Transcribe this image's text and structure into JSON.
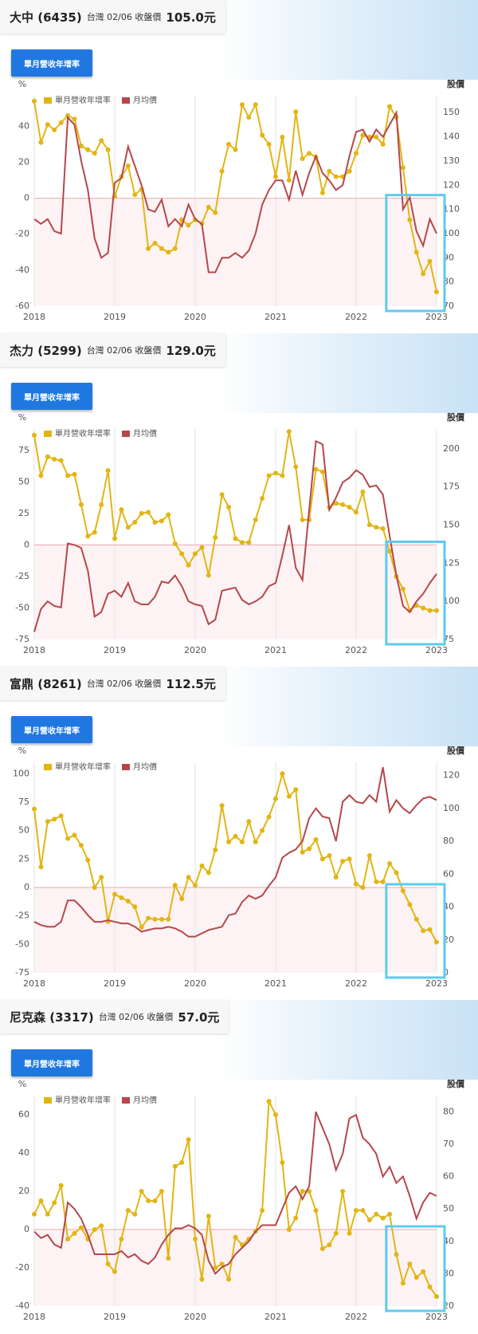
{
  "panels": [
    {
      "name": "大中 (6435)",
      "quote_label": "台灣 02/06 收盤價",
      "price": "105.0元",
      "button": "單月營收年增率"
    },
    {
      "name": "杰力 (5299)",
      "quote_label": "台灣 02/06 收盤價",
      "price": "129.0元",
      "button": "單月營收年增率"
    },
    {
      "name": "富鼎 (8261)",
      "quote_label": "台灣 02/06 收盤價",
      "price": "112.5元",
      "button": "單月營收年增率"
    },
    {
      "name": "尼克森 (3317)",
      "quote_label": "台灣 02/06 收盤價",
      "price": "57.0元",
      "button": "單月營收年增率"
    }
  ],
  "chart_data": [
    {
      "type": "line",
      "y_label": "%",
      "y2_label": "股價",
      "grid": true,
      "legend": "top-left",
      "categories": [
        "2018",
        null,
        null,
        null,
        null,
        null,
        null,
        null,
        null,
        null,
        null,
        null,
        "2019",
        null,
        null,
        null,
        null,
        null,
        null,
        null,
        null,
        null,
        null,
        null,
        "2020",
        null,
        null,
        null,
        null,
        null,
        null,
        null,
        null,
        null,
        null,
        null,
        "2021",
        null,
        null,
        null,
        null,
        null,
        null,
        null,
        null,
        null,
        null,
        null,
        "2022",
        null,
        null,
        null,
        null,
        null,
        null,
        null,
        null,
        null,
        null,
        null,
        "2023"
      ],
      "ylim": [
        -60,
        57
      ],
      "yticks": [
        -60,
        -40,
        -20,
        0,
        20,
        40
      ],
      "y2lim": [
        70,
        157
      ],
      "y2ticks": [
        70,
        80,
        90,
        100,
        110,
        120,
        130,
        140,
        150
      ],
      "series": [
        {
          "name": "單月營收年增率",
          "color": "#e2b514",
          "markers": true,
          "values": [
            54,
            31,
            41,
            38,
            42,
            46,
            44,
            29,
            27,
            25,
            32,
            27,
            1,
            12,
            18,
            2,
            5,
            -28,
            -25,
            -28,
            -30,
            -28,
            -12,
            -15,
            -12,
            -14,
            -5,
            -8,
            15,
            30,
            27,
            52,
            45,
            52,
            35,
            30,
            12,
            34,
            10,
            48,
            22,
            25,
            23,
            3,
            15,
            12,
            12,
            15,
            25,
            35,
            34,
            34,
            30,
            51,
            45,
            17,
            -12,
            -30,
            -42,
            -35,
            -52
          ]
        },
        {
          "name": "月均價",
          "color": "#b5474b",
          "axis": "y2",
          "values": [
            106,
            104,
            106,
            101,
            100,
            148,
            145,
            130,
            118,
            98,
            90,
            92,
            121,
            123,
            136,
            128,
            120,
            110,
            109,
            114,
            103,
            106,
            103,
            112,
            106,
            104,
            84,
            84,
            90,
            90,
            92,
            90,
            93,
            100,
            112,
            118,
            122,
            122,
            114,
            126,
            116,
            125,
            132,
            125,
            122,
            118,
            120,
            132,
            142,
            143,
            138,
            143,
            140,
            145,
            150,
            110,
            115,
            101,
            95,
            106,
            100
          ]
        }
      ]
    },
    {
      "type": "line",
      "y_label": "%",
      "y2_label": "股價",
      "grid": true,
      "legend": "top-left",
      "categories": [
        "2018",
        null,
        null,
        null,
        null,
        null,
        null,
        null,
        null,
        null,
        null,
        null,
        "2019",
        null,
        null,
        null,
        null,
        null,
        null,
        null,
        null,
        null,
        null,
        null,
        "2020",
        null,
        null,
        null,
        null,
        null,
        null,
        null,
        null,
        null,
        null,
        null,
        "2021",
        null,
        null,
        null,
        null,
        null,
        null,
        null,
        null,
        null,
        null,
        null,
        "2022",
        null,
        null,
        null,
        null,
        null,
        null,
        null,
        null,
        null,
        null,
        null,
        "2023"
      ],
      "ylim": [
        -75,
        92
      ],
      "yticks": [
        -75,
        -50,
        -25,
        0,
        25,
        50,
        75
      ],
      "y2lim": [
        75,
        213
      ],
      "y2ticks": [
        75,
        100,
        125,
        150,
        175,
        200
      ],
      "series": [
        {
          "name": "單月營收年增率",
          "color": "#e2b514",
          "markers": true,
          "values": [
            87,
            55,
            70,
            68,
            67,
            55,
            56,
            32,
            7,
            10,
            32,
            59,
            5,
            28,
            14,
            18,
            25,
            26,
            18,
            19,
            24,
            1,
            -7,
            -16,
            -7,
            -2,
            -24,
            6,
            40,
            30,
            5,
            2,
            2,
            20,
            37,
            55,
            57,
            55,
            90,
            62,
            20,
            20,
            60,
            58,
            30,
            33,
            32,
            30,
            26,
            42,
            16,
            14,
            13,
            -5,
            -25,
            -35,
            -52,
            -48,
            -50,
            -52,
            -52
          ]
        },
        {
          "name": "月均價",
          "color": "#b5474b",
          "axis": "y2",
          "values": [
            80,
            95,
            100,
            97,
            96,
            138,
            137,
            135,
            120,
            90,
            93,
            105,
            107,
            103,
            112,
            100,
            98,
            98,
            103,
            113,
            112,
            117,
            110,
            100,
            98,
            97,
            85,
            88,
            107,
            108,
            109,
            101,
            98,
            100,
            103,
            110,
            112,
            130,
            150,
            122,
            114,
            160,
            205,
            203,
            160,
            168,
            178,
            181,
            186,
            183,
            175,
            176,
            170,
            143,
            117,
            97,
            93,
            100,
            105,
            112,
            118
          ]
        }
      ]
    },
    {
      "type": "line",
      "y_label": "%",
      "y2_label": "股價",
      "grid": true,
      "legend": "top-left",
      "categories": [
        "2018",
        null,
        null,
        null,
        null,
        null,
        null,
        null,
        null,
        null,
        null,
        null,
        "2019",
        null,
        null,
        null,
        null,
        null,
        null,
        null,
        null,
        null,
        null,
        null,
        "2020",
        null,
        null,
        null,
        null,
        null,
        null,
        null,
        null,
        null,
        null,
        null,
        "2021",
        null,
        null,
        null,
        null,
        null,
        null,
        null,
        null,
        null,
        null,
        null,
        "2022",
        null,
        null,
        null,
        null,
        null,
        null,
        null,
        null,
        null,
        null,
        null,
        "2023"
      ],
      "ylim": [
        -75,
        110
      ],
      "yticks": [
        -75,
        -50,
        -25,
        0,
        25,
        50,
        75,
        100
      ],
      "y2lim": [
        0,
        128
      ],
      "y2ticks": [
        0,
        20,
        40,
        60,
        80,
        100,
        120
      ],
      "series": [
        {
          "name": "單月營收年增率",
          "color": "#e2b514",
          "markers": true,
          "values": [
            69,
            18,
            58,
            60,
            63,
            43,
            46,
            37,
            24,
            0,
            9,
            -30,
            -6,
            -9,
            -12,
            -17,
            -35,
            -27,
            -28,
            -28,
            -28,
            2,
            -10,
            9,
            2,
            19,
            13,
            33,
            72,
            40,
            45,
            40,
            58,
            40,
            50,
            62,
            78,
            100,
            80,
            86,
            31,
            34,
            42,
            25,
            28,
            9,
            23,
            25,
            3,
            0,
            28,
            5,
            5,
            21,
            13,
            -3,
            -15,
            -28,
            -38,
            -37,
            -48
          ]
        },
        {
          "name": "月均價",
          "color": "#b5474b",
          "axis": "y2",
          "values": [
            31,
            29,
            28,
            28,
            31,
            44,
            44,
            40,
            35,
            31,
            31,
            32,
            31,
            30,
            30,
            28,
            25,
            26,
            27,
            27,
            28,
            27,
            25,
            22,
            22,
            24,
            26,
            27,
            28,
            35,
            36,
            43,
            47,
            45,
            47,
            53,
            58,
            70,
            73,
            75,
            80,
            94,
            100,
            95,
            94,
            80,
            104,
            108,
            104,
            103,
            108,
            104,
            125,
            98,
            105,
            100,
            97,
            102,
            106,
            107,
            105
          ]
        }
      ]
    },
    {
      "type": "line",
      "y_label": "%",
      "y2_label": "股價",
      "grid": true,
      "legend": "top-left",
      "categories": [
        "2018",
        null,
        null,
        null,
        null,
        null,
        null,
        null,
        null,
        null,
        null,
        null,
        "2019",
        null,
        null,
        null,
        null,
        null,
        null,
        null,
        null,
        null,
        null,
        null,
        "2020",
        null,
        null,
        null,
        null,
        null,
        null,
        null,
        null,
        null,
        null,
        null,
        "2021",
        null,
        null,
        null,
        null,
        null,
        null,
        null,
        null,
        null,
        null,
        null,
        "2022",
        null,
        null,
        null,
        null,
        null,
        null,
        null,
        null,
        null,
        null,
        null,
        "2023"
      ],
      "ylim": [
        -40,
        70
      ],
      "yticks": [
        -40,
        -20,
        0,
        20,
        40,
        60
      ],
      "y2lim": [
        20,
        85
      ],
      "y2ticks": [
        20,
        30,
        40,
        50,
        60,
        70,
        80
      ],
      "series": [
        {
          "name": "單月營收年增率",
          "color": "#e2b514",
          "markers": true,
          "values": [
            8,
            15,
            8,
            14,
            23,
            -5,
            -2,
            1,
            -5,
            0,
            2,
            -18,
            -22,
            -5,
            10,
            8,
            20,
            15,
            15,
            20,
            -15,
            33,
            35,
            47,
            -5,
            -26,
            7,
            -20,
            -18,
            -26,
            -4,
            -8,
            -5,
            -1,
            10,
            67,
            60,
            35,
            0,
            6,
            20,
            20,
            10,
            -10,
            -8,
            -2,
            20,
            -2,
            10,
            10,
            5,
            8,
            6,
            8,
            -13,
            -28,
            -18,
            -25,
            -22,
            -30,
            -35
          ]
        },
        {
          "name": "月均價",
          "color": "#b5474b",
          "axis": "y2",
          "values": [
            43,
            41,
            42,
            39,
            38,
            52,
            50,
            47,
            42,
            36,
            36,
            36,
            36,
            37,
            35,
            36,
            34,
            33,
            35,
            39,
            42,
            44,
            44,
            45,
            44,
            42,
            34,
            30,
            32,
            33,
            36,
            38,
            40,
            43,
            45,
            45,
            45,
            50,
            55,
            57,
            53,
            57,
            80,
            75,
            70,
            62,
            67,
            78,
            79,
            72,
            70,
            67,
            60,
            63,
            58,
            60,
            54,
            47,
            52,
            55,
            54
          ]
        }
      ]
    }
  ]
}
